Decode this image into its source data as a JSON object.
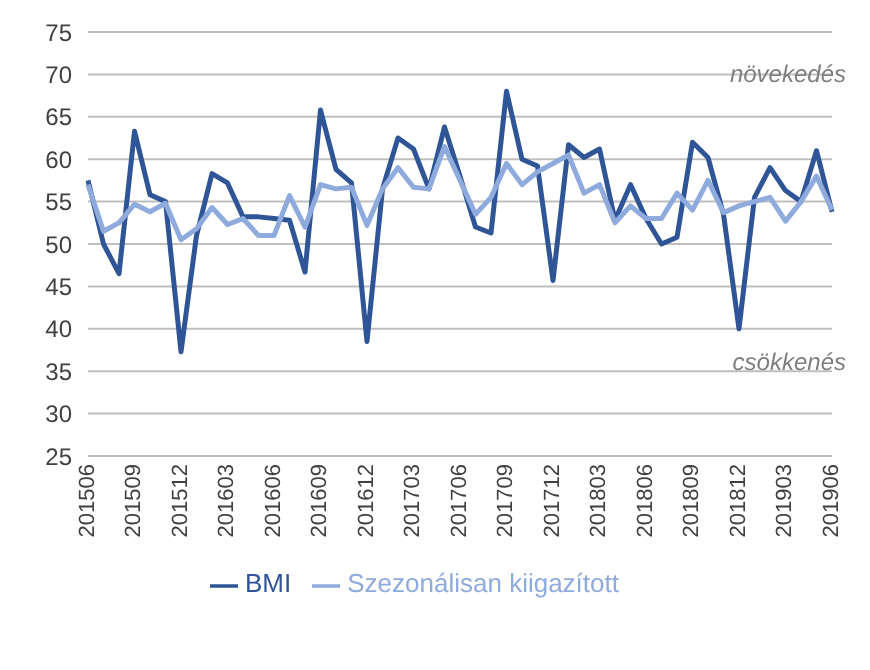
{
  "chart_data": {
    "type": "line",
    "categories": [
      "201506",
      null,
      null,
      "201509",
      null,
      null,
      "201512",
      null,
      null,
      "201603",
      null,
      null,
      "201606",
      null,
      null,
      "201609",
      null,
      null,
      "201612",
      null,
      null,
      "201703",
      null,
      null,
      "201706",
      null,
      null,
      "201709",
      null,
      null,
      "201712",
      null,
      null,
      "201803",
      null,
      null,
      "201806",
      null,
      null,
      "201809",
      null,
      null,
      "201812",
      null,
      null,
      "201903",
      null,
      null,
      "201906"
    ],
    "series": [
      {
        "name": "BMI",
        "color": "#2f5597",
        "values": [
          57.5,
          50,
          46.5,
          63.3,
          55.8,
          55,
          37.3,
          51,
          58.3,
          57.2,
          53.2,
          53.2,
          53,
          52.8,
          46.7,
          65.8,
          58.8,
          57.2,
          38.5,
          56.5,
          62.5,
          61.2,
          56.5,
          63.8,
          58,
          52,
          51.3,
          68,
          60,
          59.2,
          45.7,
          61.7,
          60.2,
          61.2,
          52.8,
          57,
          53,
          50,
          50.8,
          62,
          60.2,
          53.5,
          40,
          55.5,
          59,
          56.3,
          55,
          61,
          53.8
        ]
      },
      {
        "name": "Szezonálisan kiigazított",
        "color": "#8faadc",
        "values": [
          57,
          51.5,
          52.5,
          54.7,
          53.8,
          54.8,
          50.5,
          51.8,
          54.3,
          52.3,
          53,
          51,
          51,
          55.7,
          52,
          57,
          56.5,
          56.7,
          52.2,
          56.5,
          59,
          56.7,
          56.5,
          61.5,
          57.5,
          53.5,
          55.5,
          59.5,
          57,
          58.5,
          59.5,
          60.5,
          56,
          57,
          52.5,
          54.5,
          53,
          53,
          56,
          54,
          57.5,
          53.7,
          54.5,
          55,
          55.5,
          52.7,
          55,
          58,
          54
        ]
      }
    ],
    "ylim": [
      25,
      75
    ],
    "yticks": [
      25,
      30,
      35,
      40,
      45,
      50,
      55,
      60,
      65,
      70,
      75
    ],
    "grid": "y",
    "legend": "bottom",
    "marker": "none",
    "line_style": "solid",
    "annotations": [
      "növekedés",
      "csökkenés"
    ]
  }
}
